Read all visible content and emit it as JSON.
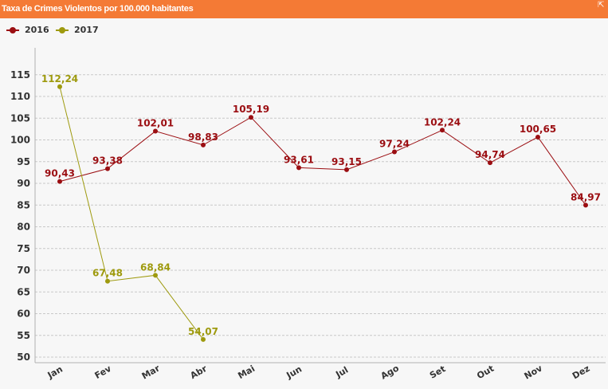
{
  "window": {
    "title": "Taxa de Crimes Violentos por 100.000 habitantes",
    "expand_icon": "expand-icon"
  },
  "colors": {
    "header": "#f47a35",
    "series_2016": "#9b0e12",
    "series_2017": "#9e9a0e",
    "grid": "#c8c8c8",
    "axis_text": "#333333"
  },
  "chart_data": {
    "type": "line",
    "title": "Taxa de Crimes Violentos por 100.000 habitantes",
    "categories": [
      "Jan",
      "Fev",
      "Mar",
      "Abr",
      "Mai",
      "Jun",
      "Jul",
      "Ago",
      "Set",
      "Out",
      "Nov",
      "Dez"
    ],
    "series": [
      {
        "name": "2016",
        "color": "#9b0e12",
        "values": [
          90.43,
          93.38,
          102.01,
          98.83,
          105.19,
          93.61,
          93.15,
          97.24,
          102.24,
          94.74,
          100.65,
          84.97
        ]
      },
      {
        "name": "2017",
        "color": "#9e9a0e",
        "values": [
          112.24,
          67.48,
          68.84,
          54.07,
          null,
          null,
          null,
          null,
          null,
          null,
          null,
          null
        ]
      }
    ],
    "y_ticks": [
      50,
      55,
      60,
      65,
      70,
      75,
      80,
      85,
      90,
      95,
      100,
      105,
      110,
      115
    ],
    "ylim": [
      48,
      120
    ],
    "grid": true,
    "legend_position": "top-left",
    "xlabel": "",
    "ylabel": ""
  }
}
